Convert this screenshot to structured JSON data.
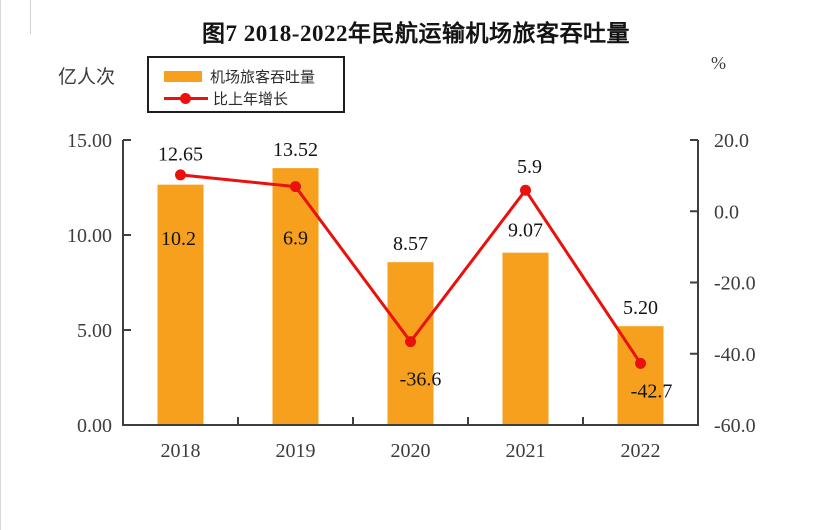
{
  "title": "图7 2018-2022年民航运输机场旅客吞吐量",
  "left_unit": "亿人次",
  "right_unit": "%",
  "legend": {
    "bar_label": "机场旅客吞吐量",
    "line_label": "比上年增长"
  },
  "colors": {
    "bar": "#F6A01E",
    "line": "#E8110C",
    "axis": "#3f3f3f",
    "tick_text": "#3d3d3d",
    "data_label": "#141414"
  },
  "chart_data": {
    "type": "bar",
    "subtype": "bar-line-combo",
    "title": "图7 2018-2022年民航运输机场旅客吞吐量",
    "categories": [
      "2018",
      "2019",
      "2020",
      "2021",
      "2022"
    ],
    "series": [
      {
        "name": "机场旅客吞吐量",
        "type": "bar",
        "axis": "left",
        "unit": "亿人次",
        "values": [
          12.65,
          13.52,
          8.57,
          9.07,
          5.2
        ],
        "labels": [
          "12.65",
          "13.52",
          "8.57",
          "9.07",
          "5.20"
        ]
      },
      {
        "name": "比上年增长",
        "type": "line",
        "axis": "right",
        "unit": "%",
        "values": [
          10.2,
          6.9,
          -36.6,
          5.9,
          -42.7
        ],
        "labels": [
          "10.2",
          "6.9",
          "-36.6",
          "5.9",
          "-42.7"
        ]
      }
    ],
    "left_axis": {
      "min": 0,
      "max": 15,
      "tick_values": [
        15,
        10,
        5,
        0
      ],
      "tick_labels": [
        "15.00",
        "10.00",
        "5.00",
        "0.00"
      ]
    },
    "right_axis": {
      "min": -60,
      "max": 20,
      "tick_values": [
        20,
        0,
        -20,
        -40,
        -60
      ],
      "tick_labels": [
        "20.0",
        "0.0",
        "-20.0",
        "-40.0",
        "-60.0"
      ]
    },
    "grid": false,
    "legend_position": "top-left"
  }
}
